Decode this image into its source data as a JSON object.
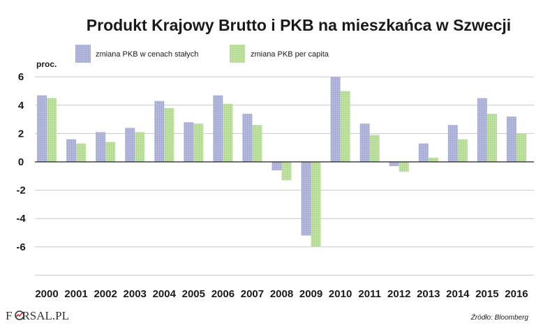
{
  "colors": {
    "series1": "#b9bde0",
    "series1_grid": "#9aa0cc",
    "series2": "#c6e6a9",
    "series2_grid": "#a2cf7f",
    "gridline": "#c8c8c8",
    "zero_line": "#222222",
    "logo_accent": "#d9302c"
  },
  "chart_data": {
    "type": "bar",
    "title": "Produkt Krajowy Brutto i PKB na mieszkańca w Szwecji",
    "unit_label": "proc.",
    "categories": [
      "2000",
      "2001",
      "2002",
      "2003",
      "2004",
      "2005",
      "2006",
      "2007",
      "2008",
      "2009",
      "2010",
      "2011",
      "2012",
      "2013",
      "2014",
      "2015",
      "2016"
    ],
    "series": [
      {
        "name": "zmiana PKB w cenach stałych",
        "values": [
          4.7,
          1.6,
          2.1,
          2.4,
          4.3,
          2.8,
          4.7,
          3.4,
          -0.6,
          -5.2,
          6.0,
          2.7,
          -0.3,
          1.3,
          2.6,
          4.5,
          3.2
        ]
      },
      {
        "name": "zmiana PKB per capita",
        "values": [
          4.5,
          1.3,
          1.4,
          2.1,
          3.8,
          2.7,
          4.1,
          2.6,
          -1.3,
          -6.0,
          5.0,
          1.9,
          -0.7,
          0.3,
          1.6,
          3.4,
          2.0
        ]
      }
    ],
    "yticks": [
      6,
      4,
      2,
      0,
      -2,
      -4,
      -6
    ],
    "ylim": [
      -8,
      6
    ],
    "grid": true,
    "legend_position": "top"
  },
  "source": "Źródło: Bloomberg",
  "logo": {
    "part1": "F",
    "part2": "RSAL.PL"
  }
}
